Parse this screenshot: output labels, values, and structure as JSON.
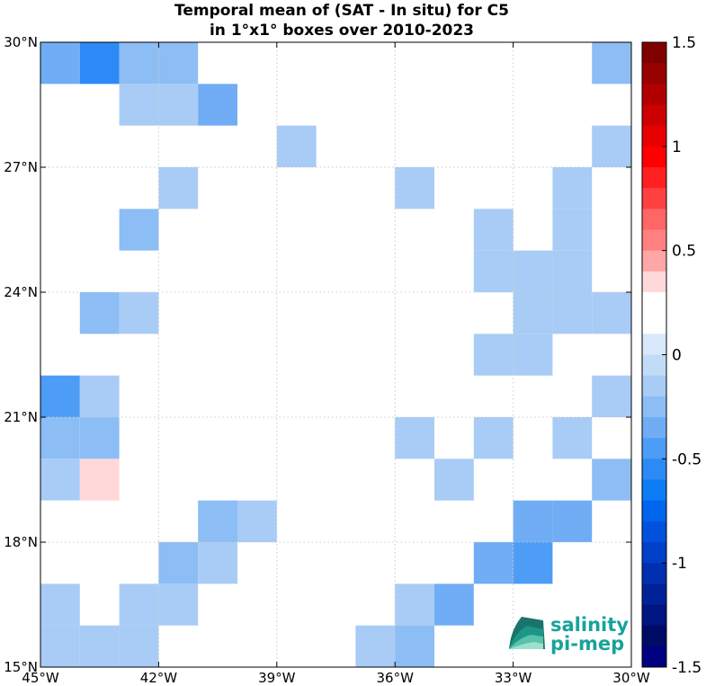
{
  "chart_data": {
    "type": "heatmap",
    "title_lines": [
      "Temporal mean of (SAT - In situ) for C5",
      "in 1°x1° boxes over 2010-2023"
    ],
    "xlim": [
      -45,
      -30
    ],
    "ylim": [
      15,
      30
    ],
    "x_ticks": [
      {
        "value": -45,
        "label": "45°W"
      },
      {
        "value": -42,
        "label": "42°W"
      },
      {
        "value": -39,
        "label": "39°W"
      },
      {
        "value": -36,
        "label": "36°W"
      },
      {
        "value": -33,
        "label": "33°W"
      },
      {
        "value": -30,
        "label": "30°W"
      }
    ],
    "y_ticks": [
      {
        "value": 15,
        "label": "15°N"
      },
      {
        "value": 18,
        "label": "18°N"
      },
      {
        "value": 21,
        "label": "21°N"
      },
      {
        "value": 24,
        "label": "24°N"
      },
      {
        "value": 27,
        "label": "27°N"
      },
      {
        "value": 30,
        "label": "30°N"
      }
    ],
    "grid": true,
    "colorbar": {
      "range": [
        -1.5,
        1.5
      ],
      "ticks": [
        {
          "value": 1.5,
          "label": "1.5"
        },
        {
          "value": 1,
          "label": "1"
        },
        {
          "value": 0.5,
          "label": "0.5"
        },
        {
          "value": 0,
          "label": "0"
        },
        {
          "value": -0.5,
          "label": "-0.5"
        },
        {
          "value": -1,
          "label": "-1"
        },
        {
          "value": -1.5,
          "label": "-1.5"
        }
      ],
      "colors_top_to_bottom": [
        "#7f0000",
        "#990000",
        "#b20000",
        "#cc0000",
        "#e60000",
        "#ff0000",
        "#ff2020",
        "#ff4040",
        "#ff6666",
        "#ff8080",
        "#ffa6a6",
        "#ffd9d9",
        "#ffffff",
        "#ffffff",
        "#d9e8fa",
        "#c2dbf7",
        "#a8ccf5",
        "#8cbdf5",
        "#70adf5",
        "#4d9cf5",
        "#2b8af5",
        "#0d7df5",
        "#0066ee",
        "#0052dd",
        "#0040c8",
        "#0030b0",
        "#002299",
        "#001580",
        "#000b66",
        "#000080"
      ]
    },
    "cells": [
      {
        "lon": -45,
        "lat": 29,
        "value": -0.3
      },
      {
        "lon": -44,
        "lat": 29,
        "value": -0.5
      },
      {
        "lon": -43,
        "lat": 29,
        "value": -0.25
      },
      {
        "lon": -42,
        "lat": 29,
        "value": -0.25
      },
      {
        "lon": -39,
        "lat": 29,
        "value": 0.2
      },
      {
        "lon": -31,
        "lat": 29,
        "value": -0.25
      },
      {
        "lon": -43,
        "lat": 28,
        "value": -0.15
      },
      {
        "lon": -42,
        "lat": 28,
        "value": -0.15
      },
      {
        "lon": -41,
        "lat": 28,
        "value": -0.35
      },
      {
        "lon": -38,
        "lat": 28,
        "value": 0.15
      },
      {
        "lon": -39,
        "lat": 27,
        "value": -0.15
      },
      {
        "lon": -31,
        "lat": 27,
        "value": -0.15
      },
      {
        "lon": -42,
        "lat": 26,
        "value": -0.15
      },
      {
        "lon": -36,
        "lat": 26,
        "value": -0.15
      },
      {
        "lon": -32,
        "lat": 26,
        "value": -0.15
      },
      {
        "lon": -43,
        "lat": 25,
        "value": -0.25
      },
      {
        "lon": -34,
        "lat": 25,
        "value": -0.15
      },
      {
        "lon": -32,
        "lat": 25,
        "value": -0.15
      },
      {
        "lon": -34,
        "lat": 24,
        "value": -0.15
      },
      {
        "lon": -33,
        "lat": 24,
        "value": -0.15
      },
      {
        "lon": -32,
        "lat": 24,
        "value": -0.15
      },
      {
        "lon": -44,
        "lat": 23,
        "value": -0.25
      },
      {
        "lon": -43,
        "lat": 23,
        "value": -0.15
      },
      {
        "lon": -33,
        "lat": 23,
        "value": -0.15
      },
      {
        "lon": -32,
        "lat": 23,
        "value": -0.15
      },
      {
        "lon": -31,
        "lat": 23,
        "value": -0.15
      },
      {
        "lon": -34,
        "lat": 22,
        "value": -0.15
      },
      {
        "lon": -33,
        "lat": 22,
        "value": -0.15
      },
      {
        "lon": -45,
        "lat": 21,
        "value": -0.45
      },
      {
        "lon": -44,
        "lat": 21,
        "value": -0.15
      },
      {
        "lon": -31,
        "lat": 21,
        "value": -0.15
      },
      {
        "lon": -45,
        "lat": 20,
        "value": -0.25
      },
      {
        "lon": -44,
        "lat": 20,
        "value": -0.25
      },
      {
        "lon": -36,
        "lat": 20,
        "value": -0.15
      },
      {
        "lon": -34,
        "lat": 20,
        "value": -0.15
      },
      {
        "lon": -32,
        "lat": 20,
        "value": -0.15
      },
      {
        "lon": -45,
        "lat": 19,
        "value": -0.15
      },
      {
        "lon": -44,
        "lat": 19,
        "value": 0.3
      },
      {
        "lon": -35,
        "lat": 19,
        "value": -0.15
      },
      {
        "lon": -31,
        "lat": 19,
        "value": -0.25
      },
      {
        "lon": -45,
        "lat": 18,
        "value": 0.15
      },
      {
        "lon": -41,
        "lat": 18,
        "value": -0.25
      },
      {
        "lon": -40,
        "lat": 18,
        "value": -0.15
      },
      {
        "lon": -33,
        "lat": 18,
        "value": -0.35
      },
      {
        "lon": -32,
        "lat": 18,
        "value": -0.3
      },
      {
        "lon": -42,
        "lat": 17,
        "value": -0.25
      },
      {
        "lon": -41,
        "lat": 17,
        "value": -0.15
      },
      {
        "lon": -34,
        "lat": 17,
        "value": -0.3
      },
      {
        "lon": -33,
        "lat": 17,
        "value": -0.45
      },
      {
        "lon": -45,
        "lat": 16,
        "value": -0.15
      },
      {
        "lon": -43,
        "lat": 16,
        "value": -0.15
      },
      {
        "lon": -42,
        "lat": 16,
        "value": -0.15
      },
      {
        "lon": -36,
        "lat": 16,
        "value": -0.15
      },
      {
        "lon": -35,
        "lat": 16,
        "value": -0.3
      },
      {
        "lon": -45,
        "lat": 15,
        "value": -0.15
      },
      {
        "lon": -44,
        "lat": 15,
        "value": -0.15
      },
      {
        "lon": -43,
        "lat": 15,
        "value": -0.15
      },
      {
        "lon": -37,
        "lat": 15,
        "value": -0.15
      },
      {
        "lon": -36,
        "lat": 15,
        "value": -0.25
      }
    ]
  },
  "logo": {
    "line1": "salinity",
    "line2": "pi-mep",
    "color": "#17a39a"
  }
}
